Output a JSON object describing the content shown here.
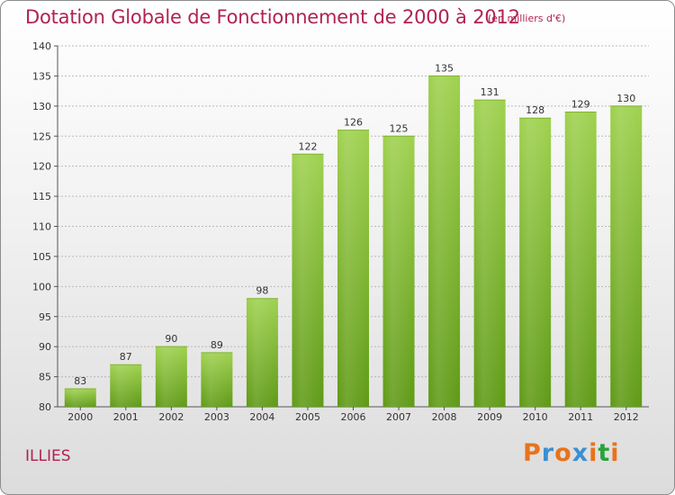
{
  "header": {
    "title": "Dotation Globale de Fonctionnement de 2000 à 2012",
    "subtitle": "(en milliers d'€)"
  },
  "footer": {
    "commune": "ILLIES",
    "logo_text": "Proxiti"
  },
  "colors": {
    "title": "#b0234f",
    "bar_light": "#9fd14f",
    "bar_dark": "#5f9a16",
    "logo": [
      "#e8731c",
      "#3b8fd1",
      "#e8731c",
      "#3b8fd1",
      "#e8731c",
      "#2aa33a",
      "#e8731c"
    ]
  },
  "chart_data": {
    "type": "bar",
    "title": "Dotation Globale de Fonctionnement de 2000 à 2012",
    "subtitle": "(en milliers d'€)",
    "xlabel": "",
    "ylabel": "",
    "categories": [
      "2000",
      "2001",
      "2002",
      "2003",
      "2004",
      "2005",
      "2006",
      "2007",
      "2008",
      "2009",
      "2010",
      "2011",
      "2012"
    ],
    "values": [
      83,
      87,
      90,
      89,
      98,
      122,
      126,
      125,
      135,
      131,
      128,
      129,
      130
    ],
    "ylim": [
      80,
      140
    ],
    "yticks": [
      80,
      85,
      90,
      95,
      100,
      105,
      110,
      115,
      120,
      125,
      130,
      135,
      140
    ],
    "grid": true,
    "legend": "none"
  }
}
